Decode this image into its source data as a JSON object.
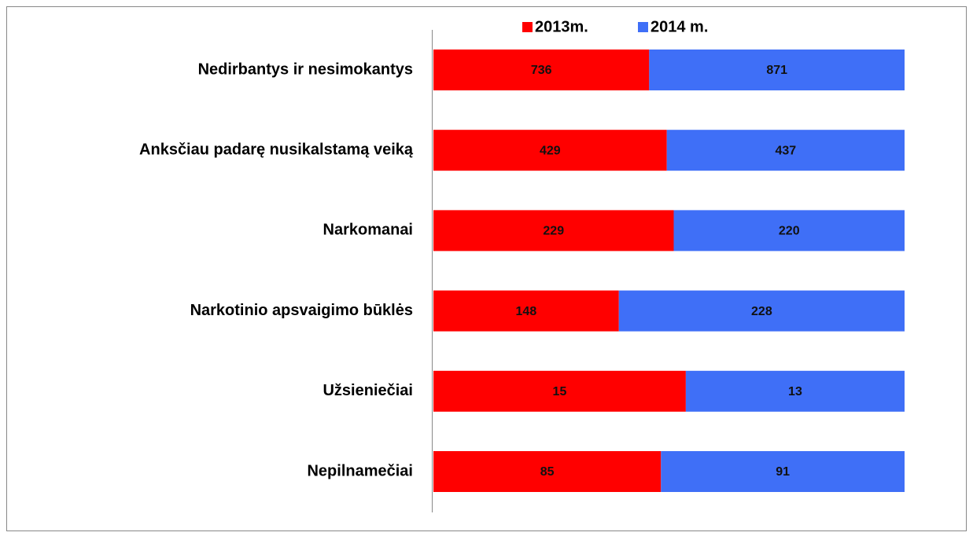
{
  "chart_data": {
    "type": "bar",
    "orientation": "horizontal",
    "stacked": "percent",
    "categories": [
      "Nedirbantys ir nesimokantys",
      "Anksčiau padarę nusikalstamą veiką",
      "Narkomanai",
      "Narkotinio apsvaigimo būklės",
      "Užsieniečiai",
      "Nepilnamečiai"
    ],
    "series": [
      {
        "name": "2013m.",
        "color": "#ff0000",
        "values": [
          736,
          429,
          229,
          148,
          15,
          85
        ]
      },
      {
        "name": "2014 m.",
        "color": "#3f6ff7",
        "values": [
          871,
          437,
          220,
          228,
          13,
          91
        ]
      }
    ],
    "legend": "top"
  }
}
